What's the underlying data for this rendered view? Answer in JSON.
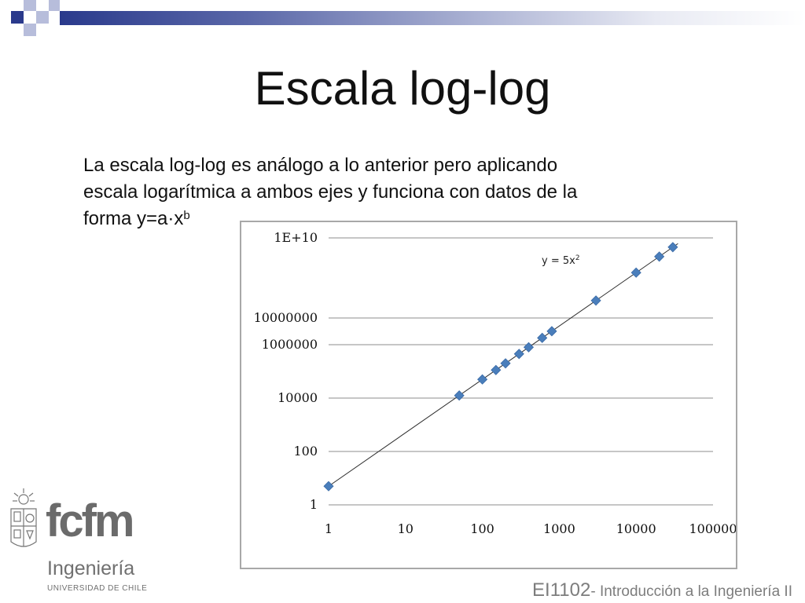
{
  "slide": {
    "title": "Escala log-log",
    "body_line1": "La escala log-log es análogo a lo anterior pero aplicando",
    "body_line2": "escala logarítmica a ambos ejes y funciona con datos de la",
    "body_line3_prefix": "forma y=a·x",
    "body_line3_sup": "b"
  },
  "chart_data": {
    "type": "scatter",
    "x_scale": "log",
    "y_scale": "log",
    "grid": true,
    "trendline": "y = 5x²",
    "annotation": "y = 5x",
    "annotation_sup": "2",
    "xlim": [
      1,
      100000
    ],
    "ylim": [
      1,
      10000000000
    ],
    "x_ticks": [
      "1",
      "10",
      "100",
      "1000",
      "10000",
      "100000"
    ],
    "y_ticks": [
      "1",
      "100",
      "10000",
      "1000000",
      "10000000",
      "1E+10"
    ],
    "series": [
      {
        "x": [
          1,
          50,
          100,
          150,
          200,
          300,
          400,
          600,
          800,
          3000,
          10000,
          20000,
          30000
        ],
        "y": [
          5,
          12500,
          50000,
          112500,
          200000,
          450000,
          800000,
          1800000,
          3200000,
          45000000,
          500000000,
          2000000000,
          4500000000
        ]
      }
    ],
    "colors": {
      "marker": "#4a7ebb",
      "line": "#2b2b2b",
      "grid": "#8c8c8c"
    }
  },
  "footer": {
    "course_code": "EI1102",
    "course_name": "- Introducción a la Ingeniería II"
  },
  "logo": {
    "brand": "fcfm",
    "line1": "Ingeniería",
    "line2": "UNIVERSIDAD DE CHILE"
  }
}
